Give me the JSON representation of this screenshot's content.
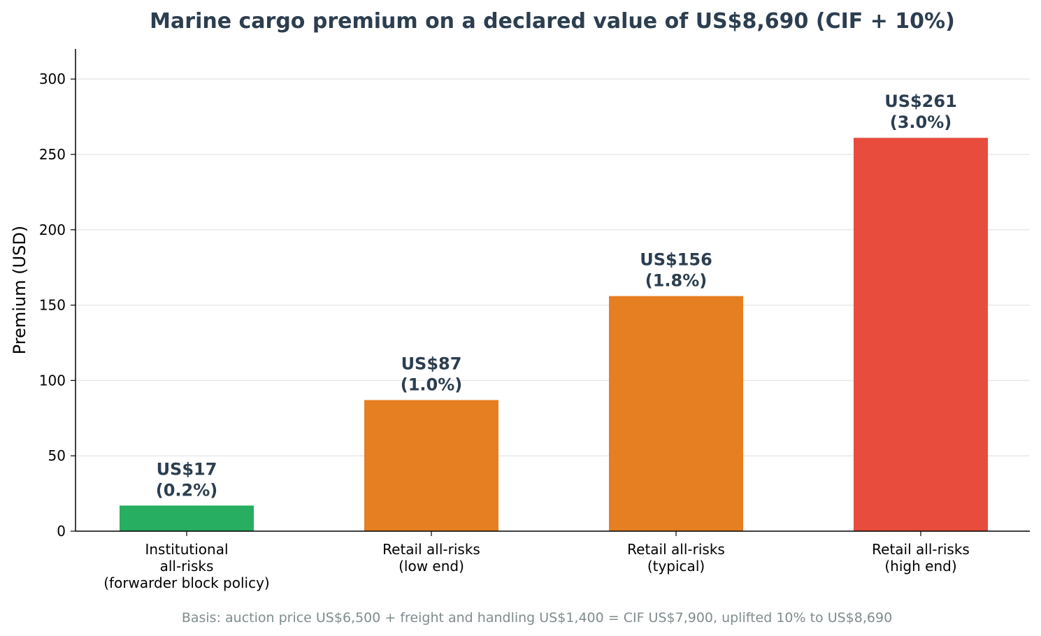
{
  "chart_data": {
    "type": "bar",
    "title": "Marine cargo premium on a declared value of US$8,690 (CIF + 10%)",
    "ylabel": "Premium (USD)",
    "xlabel": "",
    "ylim": [
      0,
      320
    ],
    "yticks": [
      0,
      50,
      100,
      150,
      200,
      250,
      300
    ],
    "grid": "horizontal",
    "categories": [
      [
        "Institutional",
        "all-risks",
        "(forwarder block policy)"
      ],
      [
        "Retail all-risks",
        "(low end)"
      ],
      [
        "Retail all-risks",
        "(typical)"
      ],
      [
        "Retail all-risks",
        "(high end)"
      ]
    ],
    "values": [
      17,
      87,
      156,
      261
    ],
    "data_labels": [
      [
        "US$17",
        "(0.2%)"
      ],
      [
        "US$87",
        "(1.0%)"
      ],
      [
        "US$156",
        "(1.8%)"
      ],
      [
        "US$261",
        "(3.0%)"
      ]
    ],
    "bar_colors": [
      "#27ae60",
      "#e67e22",
      "#e67e22",
      "#e74c3c"
    ],
    "footnote": "Basis: auction price US$6,500 + freight and handling US$1,400 = CIF US$7,900, uplifted 10% to US$8,690"
  },
  "colors": {
    "title": "#2c3e50",
    "data_label": "#2c3e50",
    "footnote": "#7f8c8d",
    "grid": "#e8e8e8",
    "axis": "#000000"
  }
}
